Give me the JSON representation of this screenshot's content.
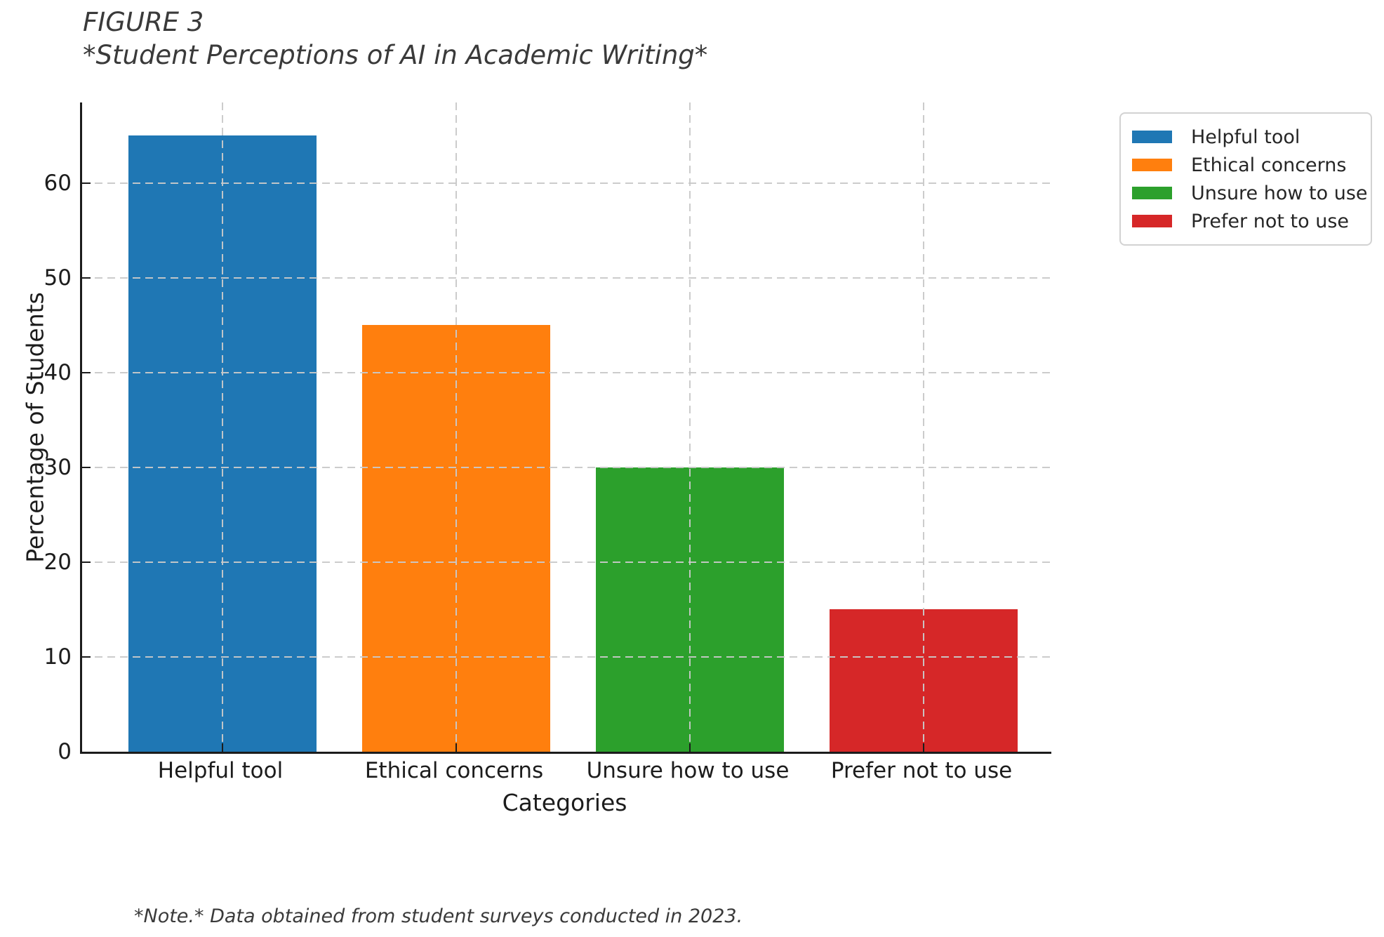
{
  "figure": {
    "title_line1": "FIGURE 3",
    "title_line2": "*Student Perceptions of AI in Academic Writing*",
    "note": "*Note.* Data obtained from student surveys conducted in 2023."
  },
  "chart_data": {
    "type": "bar",
    "title": "FIGURE 3 *Student Perceptions of AI in Academic Writing*",
    "categories": [
      "Helpful tool",
      "Ethical concerns",
      "Unsure how to use",
      "Prefer not to use"
    ],
    "values": [
      65,
      45,
      30,
      15
    ],
    "bar_colors": [
      "#1f77b4",
      "#ff7f0e",
      "#2ca02c",
      "#d62728"
    ],
    "xlabel": "Categories",
    "ylabel": "Percentage of Students",
    "ylim": [
      0,
      68.5
    ],
    "yticks": [
      0,
      10,
      20,
      30,
      40,
      50,
      60
    ],
    "grid": "both-dashed",
    "grid_color": "#c9c9c9",
    "spine_color": "#1c1c1c",
    "legend": {
      "position": "upper-right",
      "entries": [
        {
          "label": "Helpful tool",
          "color": "#1f77b4"
        },
        {
          "label": "Ethical concerns",
          "color": "#ff7f0e"
        },
        {
          "label": "Unsure how to use",
          "color": "#2ca02c"
        },
        {
          "label": "Prefer not to use",
          "color": "#d62728"
        }
      ]
    },
    "note": "*Note.* Data obtained from student surveys conducted in 2023."
  }
}
